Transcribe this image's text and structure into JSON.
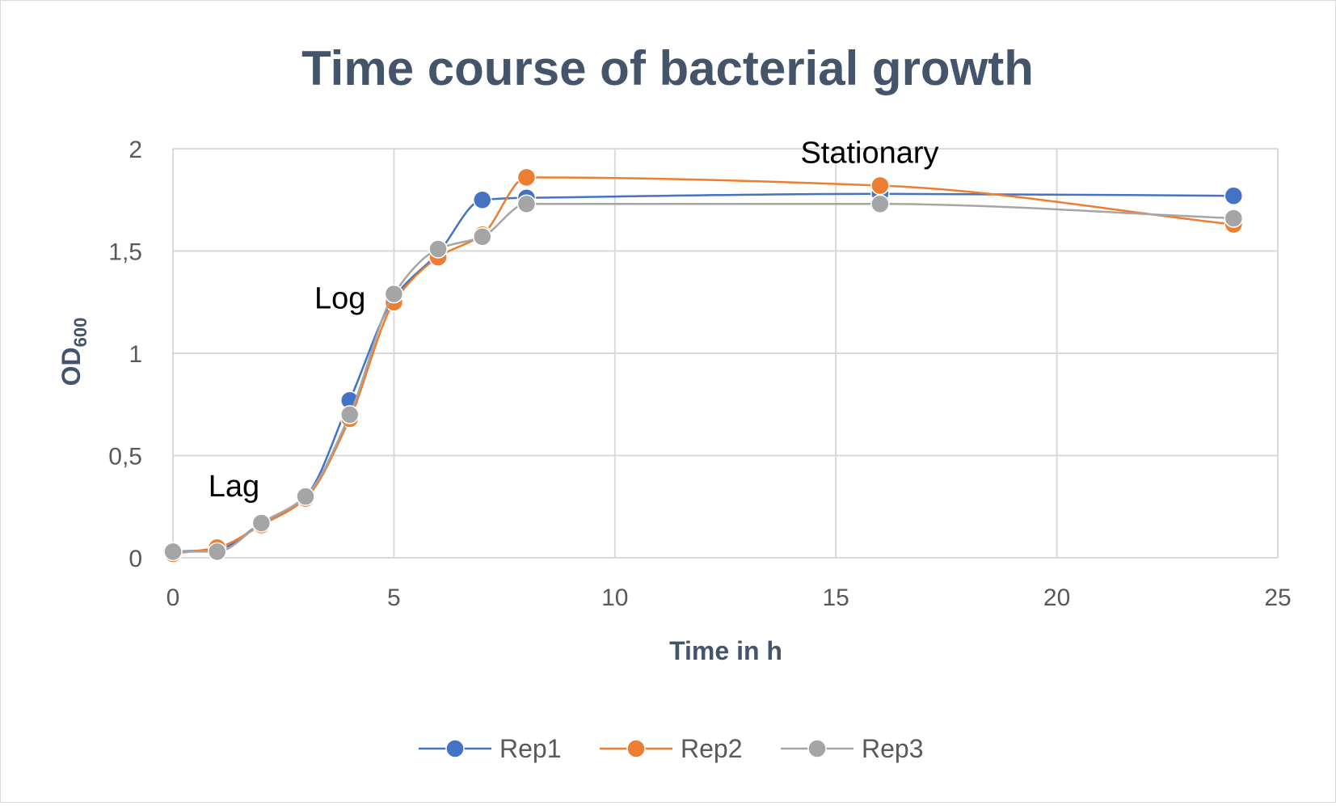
{
  "chart_data": {
    "type": "scatter",
    "title": "Time course of bacterial growth",
    "xlabel": "Time in h",
    "ylabel": "OD",
    "ylabel_subscript": "600",
    "xlim": [
      0,
      25
    ],
    "ylim": [
      0,
      2
    ],
    "x_ticks": [
      "0",
      "5",
      "10",
      "15",
      "20",
      "25"
    ],
    "y_ticks": [
      "0",
      "0,5",
      "1",
      "1,5",
      "2"
    ],
    "grid": true,
    "smooth_lines": true,
    "legend_position": "bottom",
    "x": [
      0,
      1,
      2,
      3,
      4,
      5,
      6,
      7,
      8,
      16,
      24
    ],
    "series": [
      {
        "name": "Rep1",
        "color": "#4472c4",
        "values": [
          0.03,
          0.04,
          0.17,
          0.3,
          0.77,
          1.27,
          1.49,
          1.75,
          1.76,
          1.78,
          1.77
        ]
      },
      {
        "name": "Rep2",
        "color": "#ed7d31",
        "values": [
          0.02,
          0.05,
          0.16,
          0.29,
          0.68,
          1.25,
          1.47,
          1.58,
          1.86,
          1.82,
          1.63
        ]
      },
      {
        "name": "Rep3",
        "color": "#a5a5a5",
        "values": [
          0.03,
          0.03,
          0.17,
          0.3,
          0.7,
          1.29,
          1.51,
          1.57,
          1.73,
          1.73,
          1.66
        ]
      }
    ],
    "annotations": [
      {
        "text": "Lag",
        "x": 0.8,
        "y": 0.3
      },
      {
        "text": "Log",
        "x": 3.2,
        "y": 1.22
      },
      {
        "text": "Stationary",
        "x": 14.2,
        "y": 1.93
      }
    ]
  }
}
